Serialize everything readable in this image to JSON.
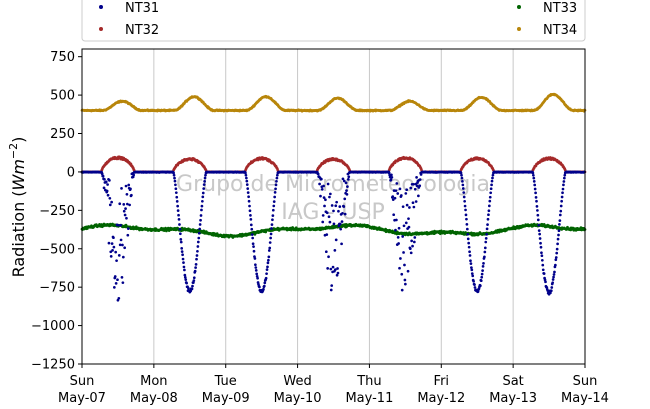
{
  "chart_data": {
    "type": "scatter",
    "title": "",
    "xlabel": "",
    "ylabel": "Radiation",
    "ylabel_unit_base": "Wm",
    "ylabel_unit_exp": "−2",
    "ylim": [
      -1250,
      800
    ],
    "yticks": [
      -1250,
      -1000,
      -750,
      -500,
      -250,
      0,
      250,
      500,
      750
    ],
    "ytick_labels": [
      "−1250",
      "−1000",
      "−750",
      "−500",
      "−250",
      "0",
      "250",
      "500",
      "750"
    ],
    "xlim": [
      0,
      7
    ],
    "xticks": [
      {
        "x": 0,
        "day": "Sun",
        "date": "May-07"
      },
      {
        "x": 1,
        "day": "Mon",
        "date": "May-08"
      },
      {
        "x": 2,
        "day": "Tue",
        "date": "May-09"
      },
      {
        "x": 3,
        "day": "Wed",
        "date": "May-10"
      },
      {
        "x": 4,
        "day": "Thu",
        "date": "May-11"
      },
      {
        "x": 5,
        "day": "Fri",
        "date": "May-12"
      },
      {
        "x": 6,
        "day": "Sat",
        "date": "May-13"
      },
      {
        "x": 7,
        "day": "Sun",
        "date": "May-14"
      }
    ],
    "grid": "vertical",
    "legend_position": "top",
    "watermark": [
      "Grupo de Micrometeorologia",
      "IAG - USP"
    ],
    "series": [
      {
        "name": "NT31",
        "color": "#00008b",
        "pattern": "daytime dips to ~-780, near 0 at night",
        "daily_min": [
          -880,
          -790,
          -790,
          -870,
          -870,
          -790,
          -800
        ],
        "cloudy_days": [
          0,
          3,
          4
        ]
      },
      {
        "name": "NT32",
        "color": "#a52a2a",
        "pattern": "zero at night, daytime peaks ~80-100",
        "daily_peak": [
          100,
          90,
          95,
          90,
          100,
          95,
          95
        ]
      },
      {
        "name": "NT33",
        "color": "#006400",
        "pattern": "around -380 with small variation",
        "baseline": -380
      },
      {
        "name": "NT34",
        "color": "#b8860b",
        "pattern": "around 400 at night, daytime peaks ~460-500",
        "baseline": 400,
        "daily_peak": [
          460,
          490,
          490,
          480,
          460,
          485,
          505
        ]
      }
    ]
  }
}
